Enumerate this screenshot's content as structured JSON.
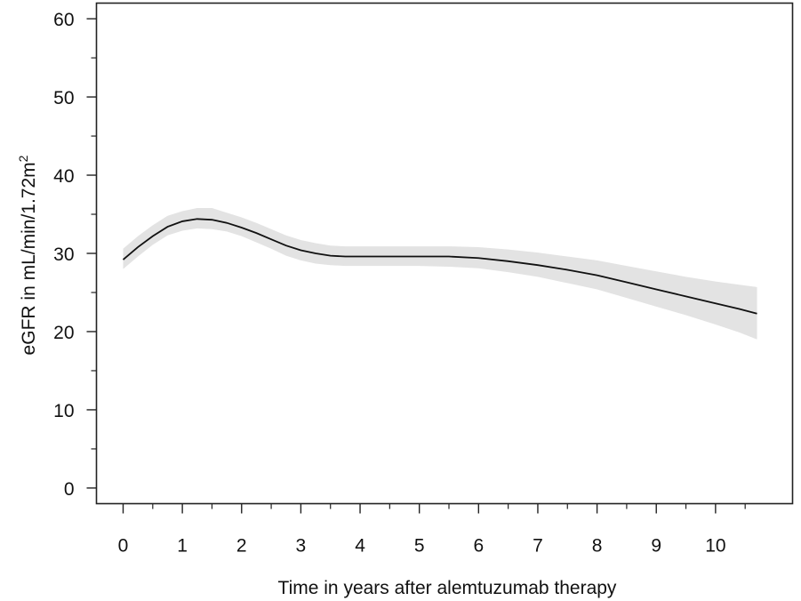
{
  "chart_data": {
    "type": "line",
    "title": "",
    "xlabel": "Time in years after alemtuzumab therapy",
    "ylabel": {
      "main": "eGFR in mL/min/1.72m",
      "superscript": "2"
    },
    "xlim": [
      -0.45,
      11.3
    ],
    "ylim": [
      -2,
      62
    ],
    "x_ticks": [
      0,
      1,
      2,
      3,
      4,
      5,
      6,
      7,
      8,
      9,
      10
    ],
    "x_minor_ticks": [
      0.5,
      1.5,
      2.5,
      3.5,
      4.5,
      5.5,
      6.5,
      7.5,
      8.5,
      9.5,
      10.5
    ],
    "y_ticks": [
      0,
      10,
      20,
      30,
      40,
      50,
      60
    ],
    "y_minor_ticks": [
      5,
      15,
      25,
      35,
      45,
      55
    ],
    "grid": false,
    "legend": "none",
    "colors": {
      "line": "#111111",
      "band": "#e3e3e3",
      "axis": "#222222"
    },
    "series": [
      {
        "x": [
          0,
          0.25,
          0.5,
          0.75,
          1,
          1.25,
          1.5,
          1.75,
          2,
          2.25,
          2.5,
          2.75,
          3,
          3.25,
          3.5,
          3.75,
          4,
          4.5,
          5,
          5.5,
          6,
          6.5,
          7,
          7.5,
          8,
          8.5,
          9,
          9.5,
          10,
          10.4,
          10.7
        ],
        "y": [
          29.2,
          30.8,
          32.2,
          33.4,
          34.1,
          34.4,
          34.3,
          33.9,
          33.3,
          32.6,
          31.8,
          31.0,
          30.4,
          30.0,
          29.7,
          29.6,
          29.6,
          29.6,
          29.6,
          29.6,
          29.4,
          29.0,
          28.5,
          27.9,
          27.2,
          26.3,
          25.4,
          24.5,
          23.6,
          22.9,
          22.3
        ],
        "lower": [
          28.0,
          29.6,
          31.1,
          32.3,
          32.9,
          33.2,
          33.1,
          32.8,
          32.2,
          31.4,
          30.6,
          29.7,
          29.1,
          28.7,
          28.5,
          28.4,
          28.4,
          28.4,
          28.4,
          28.3,
          28.1,
          27.6,
          27.0,
          26.2,
          25.4,
          24.3,
          23.2,
          22.1,
          20.9,
          19.9,
          19.0
        ],
        "upper": [
          30.6,
          32.2,
          33.6,
          34.8,
          35.4,
          35.8,
          35.8,
          35.2,
          34.6,
          33.9,
          33.1,
          32.3,
          31.7,
          31.3,
          31.0,
          30.9,
          30.9,
          30.9,
          30.9,
          30.9,
          30.8,
          30.5,
          30.1,
          29.6,
          29.1,
          28.4,
          27.7,
          27.0,
          26.4,
          26.0,
          25.7
        ]
      }
    ]
  }
}
